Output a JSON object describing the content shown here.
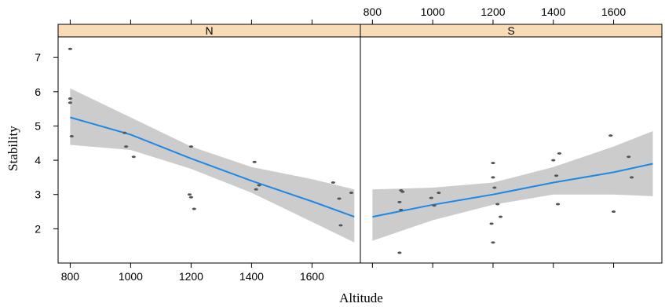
{
  "chart_data": {
    "type": "scatter",
    "xlabel": "Altitude",
    "ylabel": "Stability",
    "xlim": [
      760,
      1760
    ],
    "ylim": [
      1.0,
      7.6
    ],
    "x_ticks": [
      800,
      1000,
      1200,
      1400,
      1600
    ],
    "y_ticks": [
      2,
      3,
      4,
      5,
      6,
      7
    ],
    "grid": false,
    "colors": {
      "strip": "#f9dcb5",
      "points": "#555555",
      "fit_line": "#1e88e5",
      "band": "#cccccc"
    },
    "panels": [
      {
        "strip_label": "N",
        "points": [
          {
            "x": 800,
            "y": 7.25
          },
          {
            "x": 800,
            "y": 5.8
          },
          {
            "x": 800,
            "y": 5.68
          },
          {
            "x": 805,
            "y": 4.7
          },
          {
            "x": 980,
            "y": 4.8
          },
          {
            "x": 985,
            "y": 4.4
          },
          {
            "x": 1010,
            "y": 4.1
          },
          {
            "x": 1195,
            "y": 3.0
          },
          {
            "x": 1200,
            "y": 2.92
          },
          {
            "x": 1210,
            "y": 2.58
          },
          {
            "x": 1200,
            "y": 4.4
          },
          {
            "x": 1410,
            "y": 3.95
          },
          {
            "x": 1415,
            "y": 3.15
          },
          {
            "x": 1425,
            "y": 3.27
          },
          {
            "x": 1670,
            "y": 3.35
          },
          {
            "x": 1690,
            "y": 2.88
          },
          {
            "x": 1695,
            "y": 2.1
          },
          {
            "x": 1730,
            "y": 3.05
          }
        ],
        "fit": [
          {
            "x": 800,
            "y": 5.25,
            "lower": 4.45,
            "upper": 6.1
          },
          {
            "x": 1000,
            "y": 4.75,
            "lower": 4.3,
            "upper": 5.25
          },
          {
            "x": 1200,
            "y": 4.05,
            "lower": 3.75,
            "upper": 4.4
          },
          {
            "x": 1400,
            "y": 3.4,
            "lower": 3.05,
            "upper": 3.8
          },
          {
            "x": 1600,
            "y": 2.8,
            "lower": 2.2,
            "upper": 3.45
          },
          {
            "x": 1740,
            "y": 2.35,
            "lower": 1.6,
            "upper": 3.15
          }
        ]
      },
      {
        "strip_label": "S",
        "points": [
          {
            "x": 895,
            "y": 3.12
          },
          {
            "x": 900,
            "y": 3.08
          },
          {
            "x": 890,
            "y": 2.78
          },
          {
            "x": 895,
            "y": 2.55
          },
          {
            "x": 890,
            "y": 1.3
          },
          {
            "x": 995,
            "y": 2.9
          },
          {
            "x": 1005,
            "y": 2.68
          },
          {
            "x": 1020,
            "y": 3.05
          },
          {
            "x": 1200,
            "y": 3.92
          },
          {
            "x": 1200,
            "y": 3.5
          },
          {
            "x": 1205,
            "y": 3.2
          },
          {
            "x": 1195,
            "y": 2.15
          },
          {
            "x": 1200,
            "y": 1.6
          },
          {
            "x": 1215,
            "y": 2.72
          },
          {
            "x": 1225,
            "y": 2.35
          },
          {
            "x": 1400,
            "y": 4.0
          },
          {
            "x": 1420,
            "y": 4.2
          },
          {
            "x": 1410,
            "y": 3.55
          },
          {
            "x": 1415,
            "y": 2.72
          },
          {
            "x": 1590,
            "y": 4.72
          },
          {
            "x": 1600,
            "y": 2.5
          },
          {
            "x": 1650,
            "y": 4.1
          },
          {
            "x": 1660,
            "y": 3.5
          }
        ],
        "fit": [
          {
            "x": 800,
            "y": 2.35,
            "lower": 1.65,
            "upper": 3.15
          },
          {
            "x": 1000,
            "y": 2.7,
            "lower": 2.25,
            "upper": 3.2
          },
          {
            "x": 1200,
            "y": 3.0,
            "lower": 2.7,
            "upper": 3.35
          },
          {
            "x": 1400,
            "y": 3.35,
            "lower": 3.0,
            "upper": 3.8
          },
          {
            "x": 1600,
            "y": 3.65,
            "lower": 3.0,
            "upper": 4.4
          },
          {
            "x": 1730,
            "y": 3.9,
            "lower": 2.95,
            "upper": 4.85
          }
        ]
      }
    ]
  }
}
